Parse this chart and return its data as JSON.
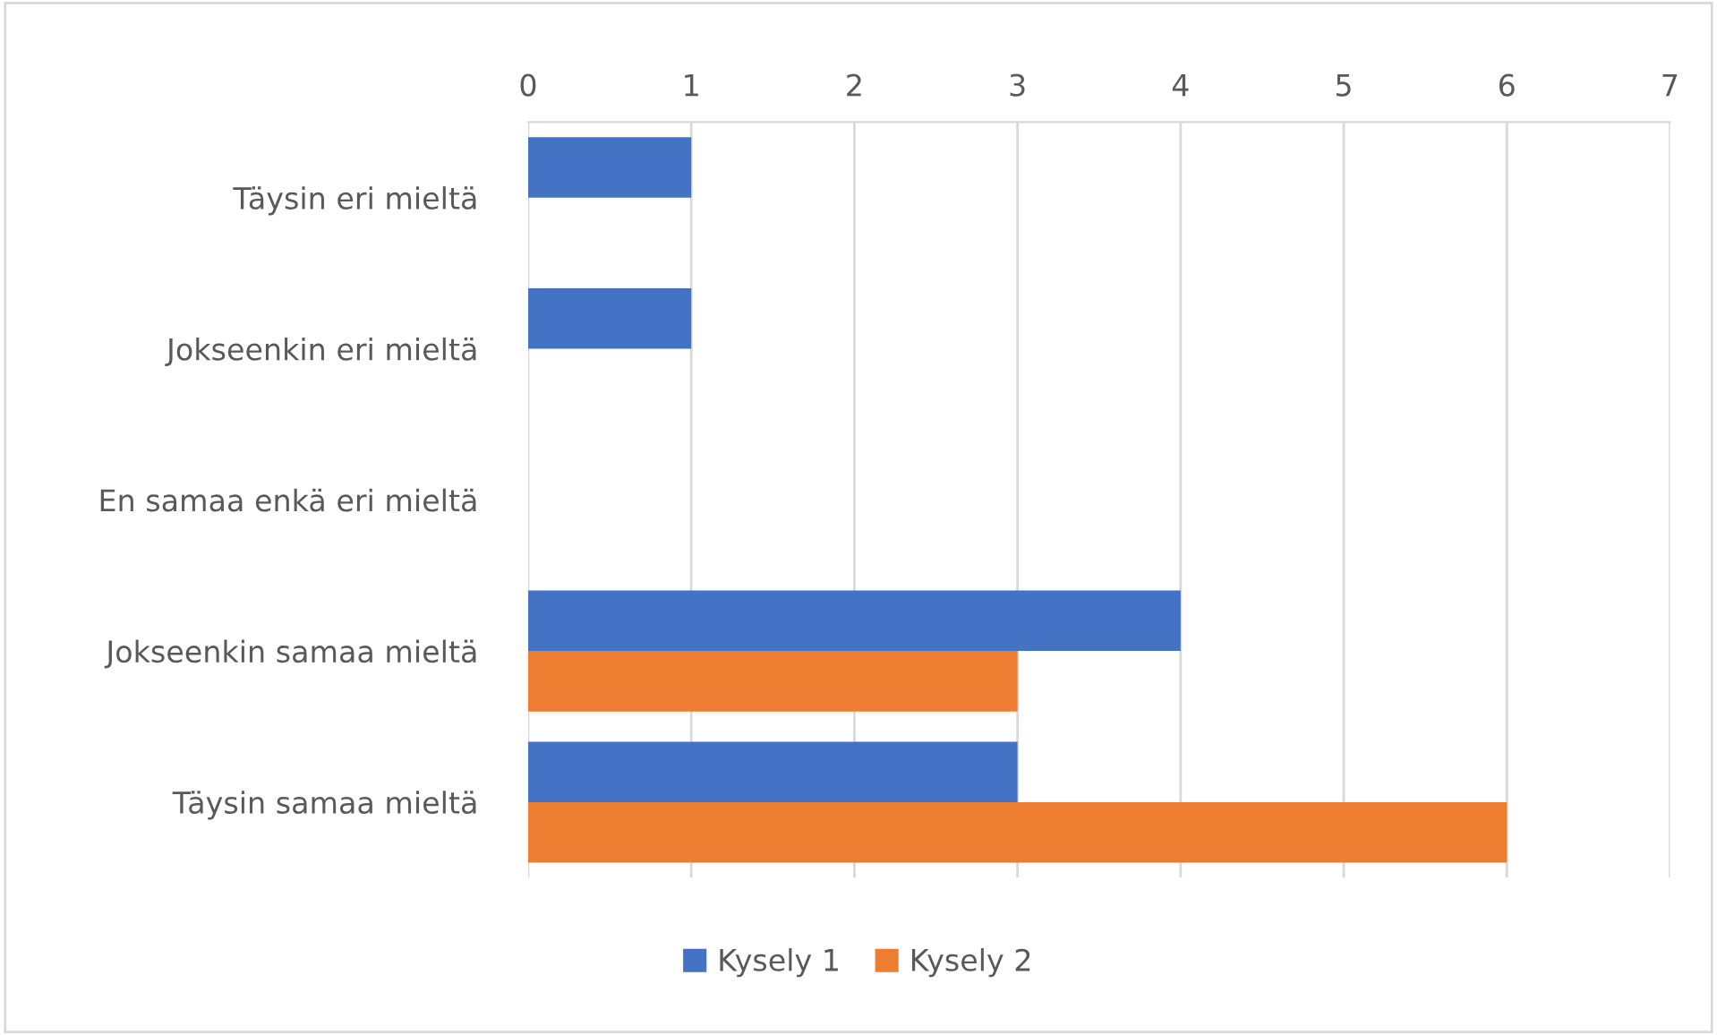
{
  "chart_data": {
    "type": "bar",
    "orientation": "horizontal",
    "categories": [
      "Täysin eri mieltä",
      "Jokseenkin eri mieltä",
      "En samaa enkä eri mieltä",
      "Jokseenkin samaa mieltä",
      "Täysin samaa mieltä"
    ],
    "series": [
      {
        "name": "Kysely 1",
        "color": "#4472c4",
        "values": [
          1,
          1,
          null,
          4,
          3
        ]
      },
      {
        "name": "Kysely 2",
        "color": "#ed7d31",
        "values": [
          null,
          null,
          null,
          3,
          6
        ]
      }
    ],
    "xlim": [
      0,
      7
    ],
    "xticks": [
      0,
      1,
      2,
      3,
      4,
      5,
      6,
      7
    ],
    "grid": "x",
    "legend": "bottom"
  }
}
